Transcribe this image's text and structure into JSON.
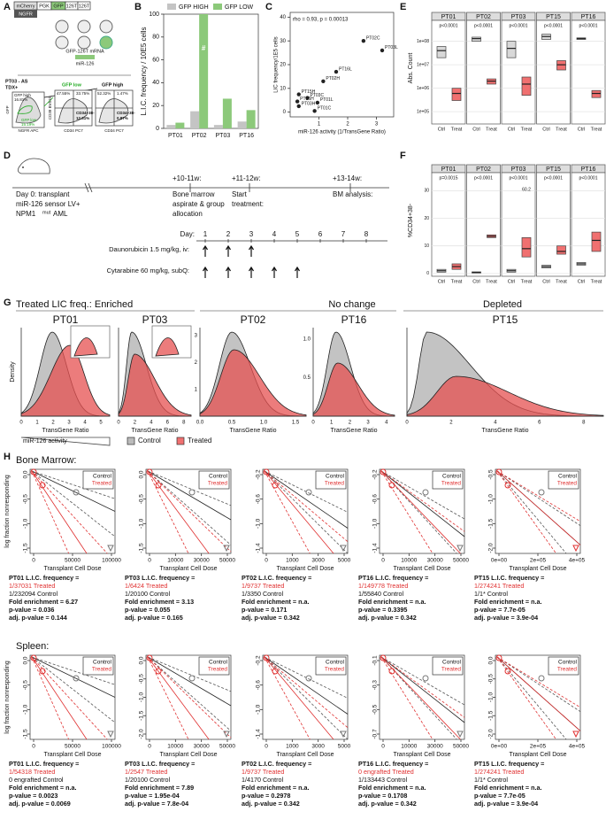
{
  "panel_labels": {
    "a": "A",
    "b": "B",
    "c": "C",
    "d": "D",
    "e": "E",
    "f": "F",
    "g": "G",
    "h": "H"
  },
  "a": {
    "construct": [
      "mCherry",
      "PGK",
      "GFP",
      "126T",
      "126T"
    ],
    "ngfr": "NGFR",
    "mrna": "GFP-126T mRNA",
    "mir": "miR-126",
    "sample": "PT03 - AS",
    "tdx": "TDX+",
    "gates": [
      "GFP high",
      "16.81%",
      "GFP low",
      "15.19%"
    ],
    "gate_headers": [
      "GFP low",
      "GFP high"
    ],
    "quadrants": [
      "47.55%",
      "33.75%",
      "52.32%",
      "1.47%"
    ],
    "quad_labels": [
      "CD34+38-",
      "12.61%",
      "CD34+38-",
      "0.87%"
    ],
    "axes": [
      "GFP",
      "NGFR APC",
      "CD38 BV510",
      "CD34 PC7",
      "CD34 PC7"
    ]
  },
  "b": {
    "ylabel": "L.I.C. frequency / 10E5 cells",
    "categories": [
      "PT01",
      "PT02",
      "PT03",
      "PT16"
    ],
    "series": [
      {
        "name": "GFP  HIGH",
        "color": "#c4c4c4",
        "values": [
          3,
          15,
          3,
          6
        ]
      },
      {
        "name": "GFP  LOW",
        "color": "#8cc97a",
        "values": [
          5,
          100,
          26,
          16
        ]
      }
    ],
    "ylim": [
      0,
      100
    ],
    "yticks": [
      0,
      20,
      40,
      60,
      80,
      100
    ],
    "annotation": "#"
  },
  "c": {
    "annotation": "rho = 0.93, p = 0.00013",
    "xlabel": "miR-126 activity (1/TransGene Ratio)",
    "ylabel": "LIC frequency/1E5 cells",
    "xlim": [
      0,
      3.6
    ],
    "ylim": [
      -2,
      42
    ],
    "xticks": [
      1,
      2,
      3
    ],
    "yticks": [
      0,
      10,
      20,
      30,
      40
    ],
    "points": [
      {
        "label": "PT02C",
        "x": 2.55,
        "y": 30
      },
      {
        "label": "PT03L",
        "x": 3.2,
        "y": 26
      },
      {
        "label": "PT16L",
        "x": 1.6,
        "y": 17
      },
      {
        "label": "PT02H",
        "x": 1.15,
        "y": 13
      },
      {
        "label": "PT15H",
        "x": 0.3,
        "y": 7.5
      },
      {
        "label": "PT03C",
        "x": 0.6,
        "y": 6
      },
      {
        "label": "PT16H",
        "x": 0.25,
        "y": 4.5
      },
      {
        "label": "PT01L",
        "x": 0.95,
        "y": 4
      },
      {
        "label": "PT03H",
        "x": 0.3,
        "y": 2.5
      },
      {
        "label": "PT01C",
        "x": 0.85,
        "y": 0.5
      }
    ]
  },
  "d": {
    "t0": [
      "Day 0: transplant",
      "miR-126 sensor LV+",
      "NPM1"
    ],
    "mut": "mut",
    "aml": "AML",
    "t1": [
      "+10-11w:",
      "Bone marrow",
      "aspirate & group",
      "allocation"
    ],
    "t2": [
      "+11-12w:",
      "Start",
      "treatment:"
    ],
    "t3": [
      "+13-14w:",
      "BM analysis:"
    ],
    "day_label": "Day:",
    "days": [
      1,
      2,
      3,
      4,
      5,
      6,
      7,
      8
    ],
    "dauno": "Daunorubicin 1.5 mg/kg, iv:",
    "dauno_days": [
      1,
      2,
      3
    ],
    "cyta": "Cytarabine 60 mg/kg, subQ:",
    "cyta_days": [
      1,
      2,
      3,
      4,
      5
    ]
  },
  "e": {
    "ylabel": "Abs. Count",
    "log": true,
    "ylim": [
      30000,
      300000000
    ],
    "yticks": [
      {
        "value": 100000,
        "label": "1e+05"
      },
      {
        "value": 1000000,
        "label": "1e+06"
      },
      {
        "value": 10000000,
        "label": "1e+07"
      },
      {
        "value": 100000000,
        "label": "1e+08"
      }
    ],
    "groups": [
      "Ctrl",
      "Treat"
    ],
    "facets": [
      {
        "title": "PT01",
        "p": "p<0.0001",
        "ctrl": [
          20000000,
          40000000,
          60000000
        ],
        "treat": [
          300000,
          600000,
          1000000
        ]
      },
      {
        "title": "PT02",
        "p": "p<0.0001",
        "ctrl": [
          100000000,
          130000000,
          150000000
        ],
        "treat": [
          1500000,
          2000000,
          2500000
        ]
      },
      {
        "title": "PT03",
        "p": "p<0.0001",
        "ctrl": [
          20000000,
          50000000,
          100000000
        ],
        "treat": [
          500000,
          1500000,
          3000000
        ]
      },
      {
        "title": "PT15",
        "p": "p<0.0001",
        "ctrl": [
          120000000,
          160000000,
          200000000
        ],
        "treat": [
          6000000,
          10000000,
          15000000
        ]
      },
      {
        "title": "PT16",
        "p": "p<0.0001",
        "ctrl": [
          120000000,
          130000000,
          140000000
        ],
        "treat": [
          400000,
          600000,
          800000
        ]
      }
    ]
  },
  "f": {
    "ylabel": "%CD34+38-",
    "ylim": [
      -1,
      33
    ],
    "yticks": [
      0,
      10,
      20,
      30
    ],
    "groups": [
      "Ctrl",
      "Treat"
    ],
    "annotation": "60.2",
    "facets": [
      {
        "title": "PT01",
        "p": "p=0.0015",
        "ctrl": [
          0.5,
          1,
          1.5
        ],
        "treat": [
          1.5,
          2.5,
          3.5
        ]
      },
      {
        "title": "PT02",
        "p": "p<0.0001",
        "ctrl": [
          0.2,
          0.4,
          0.6
        ],
        "treat": [
          13,
          13.5,
          14
        ]
      },
      {
        "title": "PT03",
        "p": "p<0.0001",
        "ctrl": [
          0.5,
          1,
          1.5
        ],
        "treat": [
          6,
          9,
          13
        ]
      },
      {
        "title": "PT15",
        "p": "p<0.0001",
        "ctrl": [
          2,
          2.5,
          3
        ],
        "treat": [
          7,
          8,
          10
        ]
      },
      {
        "title": "PT16",
        "p": "p<0.0001",
        "ctrl": [
          3,
          3.5,
          4
        ],
        "treat": [
          8,
          12,
          15
        ]
      }
    ]
  },
  "g": {
    "headings": [
      "Treated LIC freq.:  Enriched",
      "No change",
      "Depleted"
    ],
    "ylabel": "Density",
    "xlabel": "TransGene Ratio",
    "legend": [
      "Control",
      "Treated"
    ],
    "activity": "miR-126 activity",
    "plots": [
      {
        "title": "PT01",
        "xticks": [
          "0",
          "1",
          "2",
          "3",
          "4",
          "5"
        ]
      },
      {
        "title": "PT03",
        "xticks": [
          "0",
          "2",
          "4",
          "6",
          "8"
        ]
      },
      {
        "title": "PT02",
        "xticks": [
          "0.0",
          "0.5",
          "1.0",
          "1.5"
        ],
        "yticks": [
          "1",
          "2",
          "3"
        ]
      },
      {
        "title": "PT16",
        "xticks": [
          "0",
          "1",
          "2",
          "3",
          "4"
        ],
        "yticks": [
          "0.5",
          "1.0"
        ]
      },
      {
        "title": "PT15",
        "xticks": [
          "0",
          "2",
          "4",
          "6",
          "8"
        ]
      }
    ]
  },
  "h": {
    "ylabel": "log fraction nonresponding",
    "xlabel": "Transplant Cell Dose",
    "legend": [
      "Control",
      "Treated"
    ],
    "rows": [
      {
        "title": "Bone Marrow:",
        "plots": [
          {
            "xticks": [
              "0",
              "50000",
              "100000"
            ],
            "yticks": [
              "0.0",
              "-0.5",
              "-1.0",
              "-1.5"
            ],
            "stats": [
              "PT01 L.I.C. frequency =",
              "1/37031 Treated",
              "1/232094 Control",
              "Fold enrichment = 6.27",
              "p-value = 0.036",
              "adj. p-value = 0.144"
            ]
          },
          {
            "xticks": [
              "0",
              "10000",
              "30000",
              "50000"
            ],
            "yticks": [
              "0.0",
              "-0.5",
              "-1.0",
              "-1.5"
            ],
            "stats": [
              "PT03 L.I.C. frequency =",
              "1/6424 Treated",
              "1/20100 Control",
              "Fold enrichment = 3.13",
              "p-value = 0.055",
              "adj. p-value = 0.165"
            ]
          },
          {
            "xticks": [
              "0",
              "1000",
              "3000",
              "5000"
            ],
            "yticks": [
              "-0.2",
              "-0.6",
              "-1.0",
              "-1.4"
            ],
            "stats": [
              "PT02 L.I.C. frequency =",
              "1/9737 Treated",
              "1/3350 Control",
              "Fold enrichment = n.a.",
              "p-value = 0.171",
              "adj. p-value = 0.342"
            ]
          },
          {
            "xticks": [
              "0",
              "10000",
              "30000",
              "50000"
            ],
            "yticks": [
              "-0.2",
              "-0.6",
              "-1.0",
              "-1.4"
            ],
            "stats": [
              "PT16 L.I.C. frequency =",
              "1/149778 Treated",
              "1/55840 Control",
              "Fold enrichment = n.a.",
              "p-value = 0.3395",
              "adj. p-value = 0.342"
            ]
          },
          {
            "xticks": [
              "0e+00",
              "2e+05",
              "4e+05"
            ],
            "yticks": [
              "-0.5",
              "-1.0",
              "-1.5",
              "-2.0"
            ],
            "stats": [
              "PT15 L.I.C. frequency =",
              "1/274241 Treated",
              "1/1* Control",
              "Fold enrichment = n.a.",
              "p-value = 7.7e-05",
              "adj. p-value = 3.9e-04"
            ]
          }
        ]
      },
      {
        "title": "Spleen:",
        "plots": [
          {
            "xticks": [
              "0",
              "50000",
              "100000"
            ],
            "yticks": [
              "0.0",
              "-0.5",
              "-1.0",
              "-1.5"
            ],
            "stats": [
              "PT01 L.I.C. frequency =",
              "1/54318 Treated",
              "0 engrafted Control",
              "Fold enrichment = n.a.",
              "p-value = 0.0023",
              "adj. p-value = 0.0069"
            ]
          },
          {
            "xticks": [
              "0",
              "10000",
              "30000",
              "50000"
            ],
            "yticks": [
              "0.0",
              "-0.5",
              "-1.0",
              "-1.5",
              "-2.0"
            ],
            "stats": [
              "PT03 L.I.C. frequency =",
              "1/2547 Treated",
              "1/20100 Control",
              "Fold enrichment = 7.89",
              "p-value = 1.95e-04",
              "adj. p-value = 7.8e-04"
            ]
          },
          {
            "xticks": [
              "0",
              "1000",
              "3000",
              "5000"
            ],
            "yticks": [
              "-0.2",
              "-0.6",
              "-1.0",
              "-1.4"
            ],
            "stats": [
              "PT02 L.I.C. frequency =",
              "1/9737 Treated",
              "1/4170 Control",
              "Fold enrichment = n.a.",
              "p-value = 0.2978",
              "adj. p-value = 0.342"
            ]
          },
          {
            "xticks": [
              "0",
              "10000",
              "30000",
              "50000"
            ],
            "yticks": [
              "-0.1",
              "-0.3",
              "-0.5",
              "-0.7"
            ],
            "stats": [
              "PT16 L.I.C. frequency =",
              "0 engrafted Treated",
              "1/133443 Control",
              "Fold enrichment = n.a.",
              "p-value = 0.1708",
              "adj. p-value = 0.342"
            ]
          },
          {
            "xticks": [
              "0e+00",
              "2e+05",
              "4e+05"
            ],
            "yticks": [
              "0.0",
              "-0.5",
              "-1.0",
              "-1.5",
              "-2.0"
            ],
            "stats": [
              "PT15 L.I.C. frequency =",
              "1/274241 Treated",
              "1/1* Control",
              "Fold enrichment = n.a.",
              "p-value = 7.7e-05",
              "adj. p-value = 3.9e-04"
            ]
          }
        ]
      }
    ]
  }
}
